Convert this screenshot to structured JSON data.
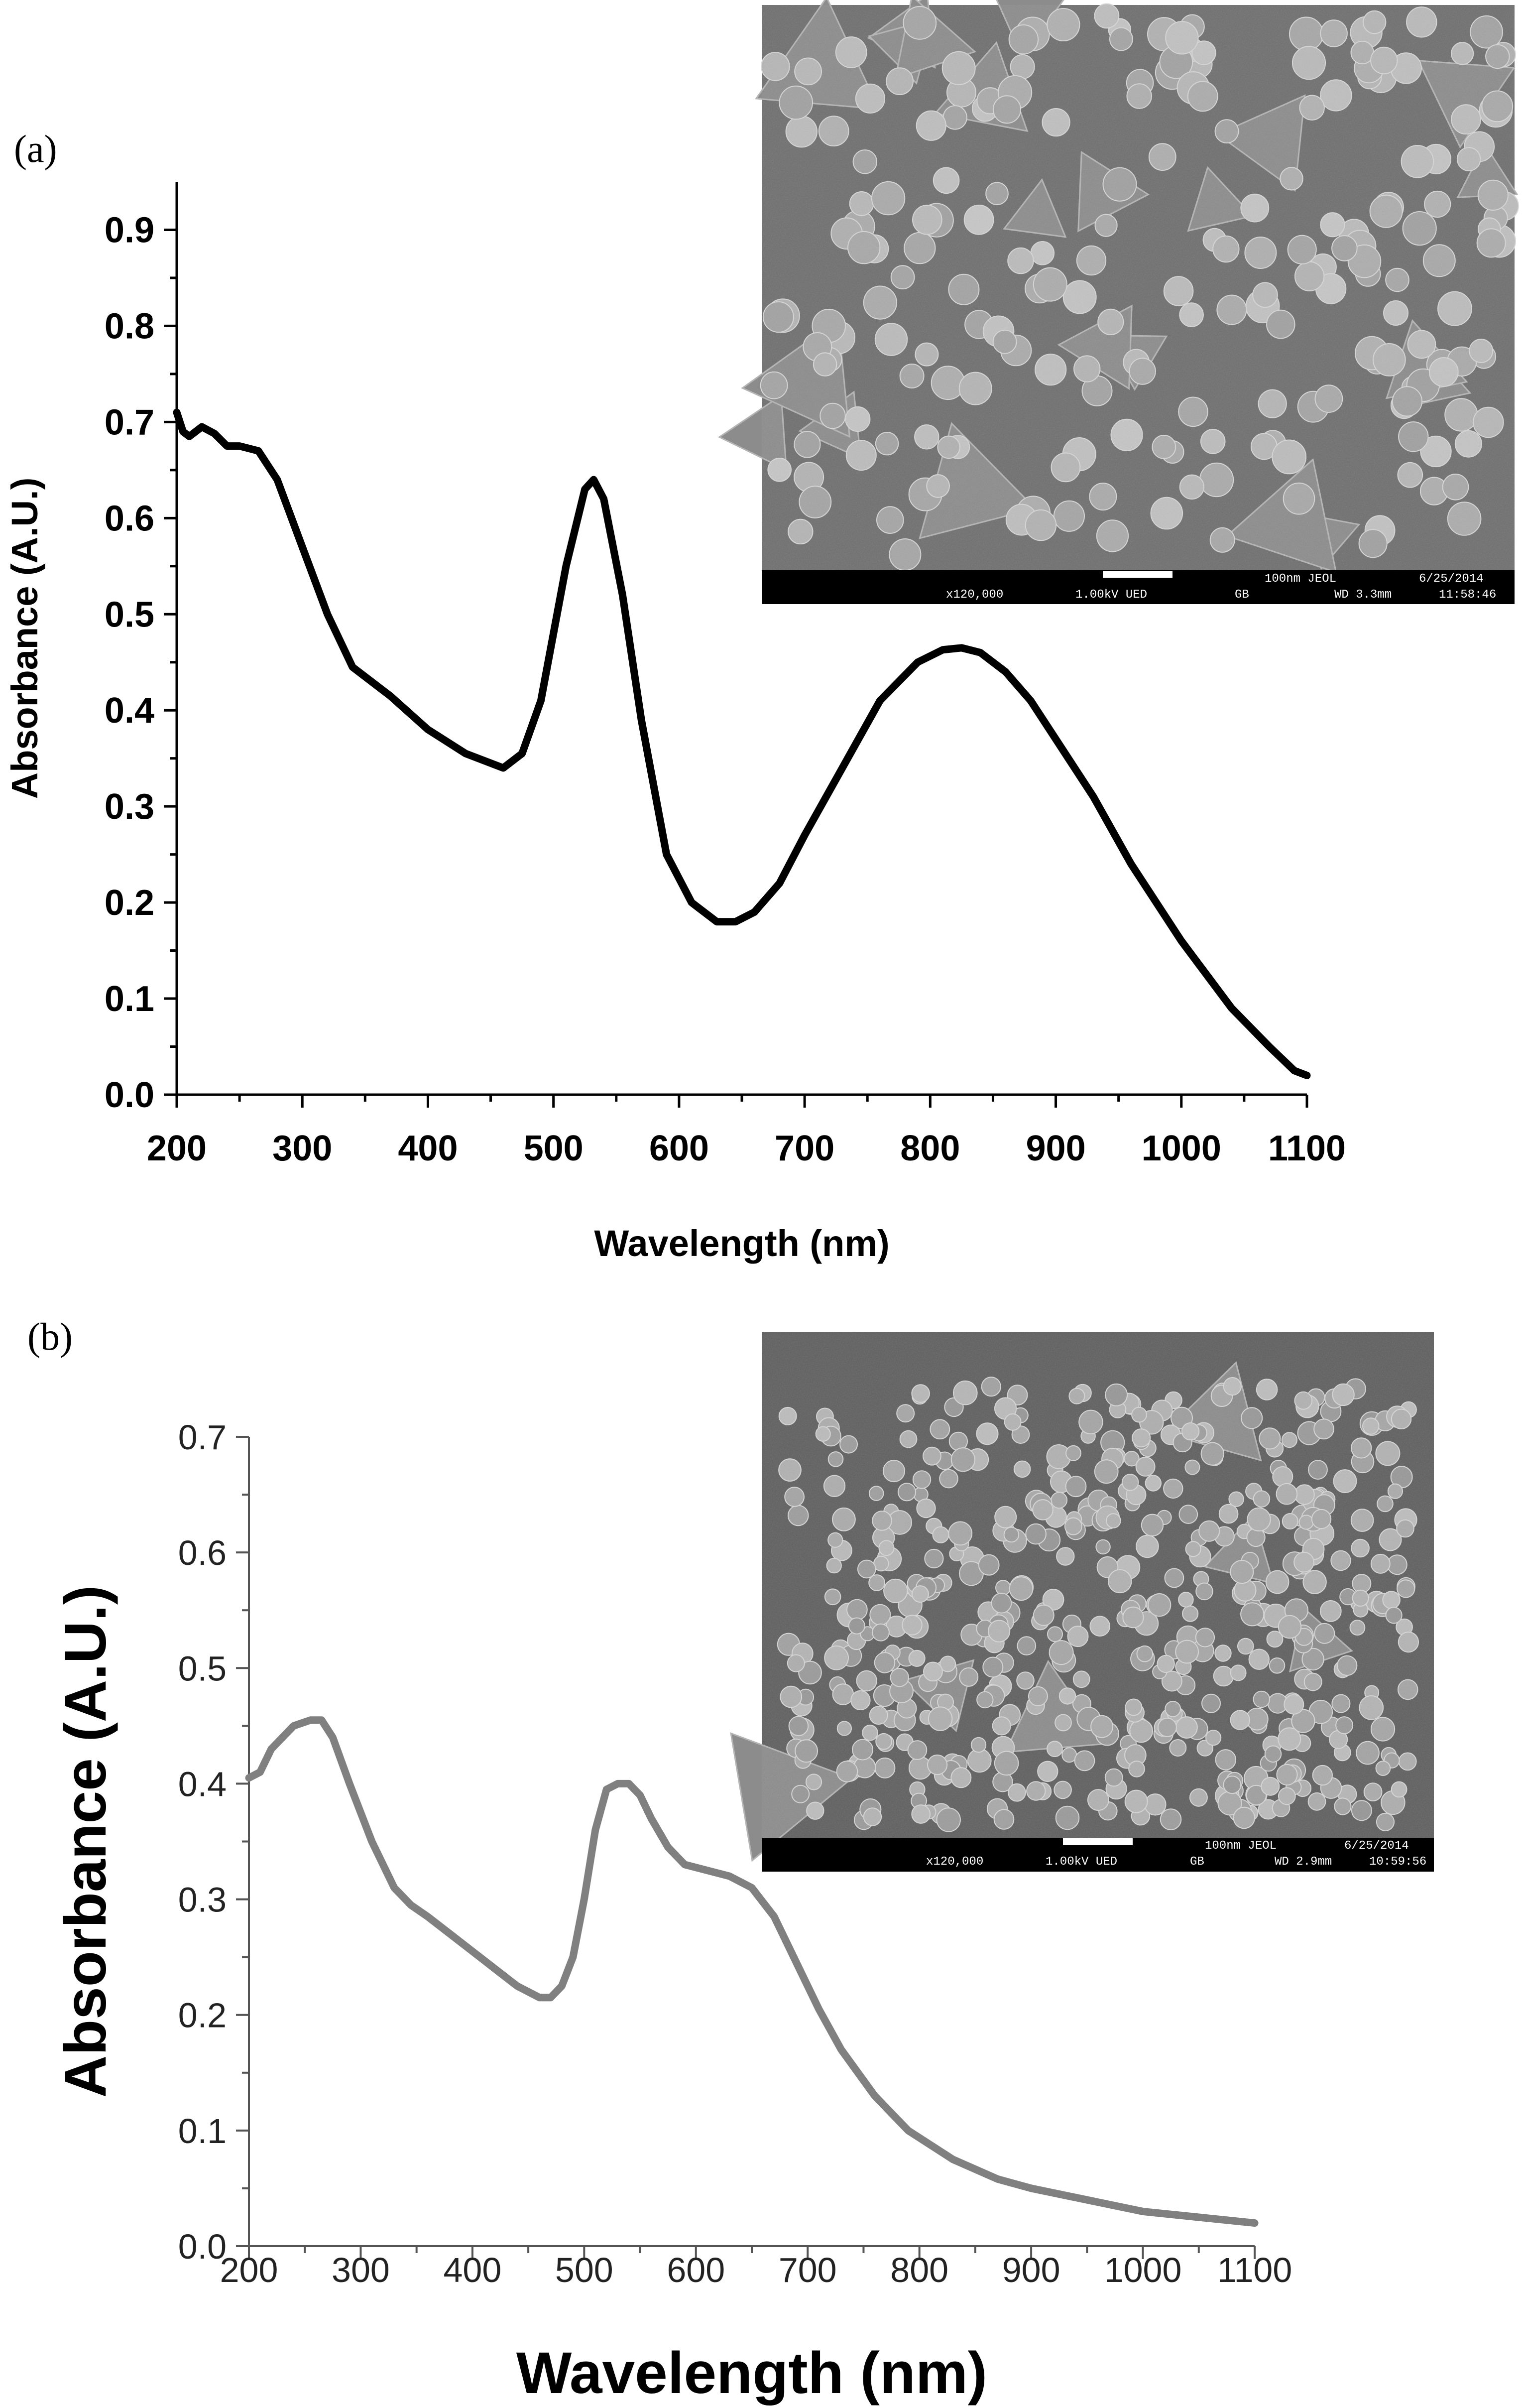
{
  "figure": {
    "panel_a_label": "(a)",
    "panel_b_label": "(b)"
  },
  "chart_data": [
    {
      "type": "line",
      "panel": "(a)",
      "xlabel": "Wavelength (nm)",
      "ylabel": "Absorbance (A.U.)",
      "xlim": [
        200,
        1100
      ],
      "ylim": [
        0,
        0.95
      ],
      "xticks": [
        "200",
        "300",
        "400",
        "500",
        "600",
        "700",
        "800",
        "900",
        "1000",
        "1100"
      ],
      "yticks": [
        "0.0",
        "0.1",
        "0.2",
        "0.3",
        "0.4",
        "0.5",
        "0.6",
        "0.7",
        "0.8",
        "0.9"
      ],
      "line_color": "#000000",
      "grid": false,
      "series": [
        {
          "x": [
            200,
            205,
            210,
            220,
            230,
            240,
            250,
            265,
            280,
            300,
            320,
            340,
            350,
            370,
            400,
            430,
            460,
            475,
            490,
            510,
            525,
            532,
            540,
            555,
            570,
            590,
            610,
            630,
            645,
            660,
            680,
            700,
            730,
            760,
            790,
            810,
            825,
            840,
            860,
            880,
            900,
            930,
            960,
            1000,
            1040,
            1070,
            1090,
            1100
          ],
          "y": [
            0.71,
            0.69,
            0.685,
            0.695,
            0.688,
            0.675,
            0.675,
            0.67,
            0.64,
            0.57,
            0.5,
            0.445,
            0.435,
            0.415,
            0.38,
            0.355,
            0.34,
            0.355,
            0.41,
            0.55,
            0.63,
            0.64,
            0.62,
            0.52,
            0.39,
            0.25,
            0.2,
            0.18,
            0.18,
            0.19,
            0.22,
            0.27,
            0.34,
            0.41,
            0.45,
            0.463,
            0.465,
            0.46,
            0.44,
            0.41,
            0.37,
            0.31,
            0.24,
            0.16,
            0.09,
            0.05,
            0.025,
            0.02
          ]
        }
      ],
      "inset": {
        "type": "SEM micrograph",
        "scale_bar": "100nm",
        "info_line": [
          "x120,000",
          "1.00kV UED",
          "GB",
          "WD 3.3mm",
          "11:58:46"
        ],
        "instrument_line": [
          "100nm JEOL",
          "6/25/2014"
        ]
      }
    },
    {
      "type": "line",
      "panel": "(b)",
      "xlabel": "Wavelength (nm)",
      "ylabel": "Absorbance (A.U.)",
      "xlim": [
        200,
        1100
      ],
      "ylim": [
        0,
        0.7
      ],
      "xticks": [
        "200",
        "300",
        "400",
        "500",
        "600",
        "700",
        "800",
        "900",
        "1000",
        "1100"
      ],
      "yticks": [
        "0.0",
        "0.1",
        "0.2",
        "0.3",
        "0.4",
        "0.5",
        "0.6",
        "0.7"
      ],
      "line_color": "#808080",
      "grid": false,
      "series": [
        {
          "x": [
            200,
            210,
            220,
            240,
            255,
            265,
            275,
            290,
            310,
            330,
            345,
            360,
            380,
            400,
            420,
            440,
            460,
            470,
            480,
            490,
            500,
            510,
            520,
            530,
            540,
            550,
            560,
            575,
            590,
            610,
            630,
            650,
            670,
            690,
            710,
            730,
            760,
            790,
            830,
            870,
            900,
            950,
            1000,
            1050,
            1100
          ],
          "y": [
            0.405,
            0.41,
            0.43,
            0.45,
            0.455,
            0.455,
            0.44,
            0.4,
            0.35,
            0.31,
            0.295,
            0.285,
            0.27,
            0.255,
            0.24,
            0.225,
            0.215,
            0.215,
            0.225,
            0.25,
            0.3,
            0.36,
            0.395,
            0.4,
            0.4,
            0.39,
            0.37,
            0.345,
            0.33,
            0.325,
            0.32,
            0.31,
            0.285,
            0.245,
            0.205,
            0.17,
            0.13,
            0.1,
            0.075,
            0.058,
            0.05,
            0.04,
            0.03,
            0.025,
            0.02
          ]
        }
      ],
      "inset": {
        "type": "SEM micrograph",
        "scale_bar": "100nm",
        "info_line": [
          "x120,000",
          "1.00kV UED",
          "GB",
          "WD 2.9mm",
          "10:59:56"
        ],
        "instrument_line": [
          "100nm JEOL",
          "6/25/2014"
        ]
      }
    }
  ]
}
